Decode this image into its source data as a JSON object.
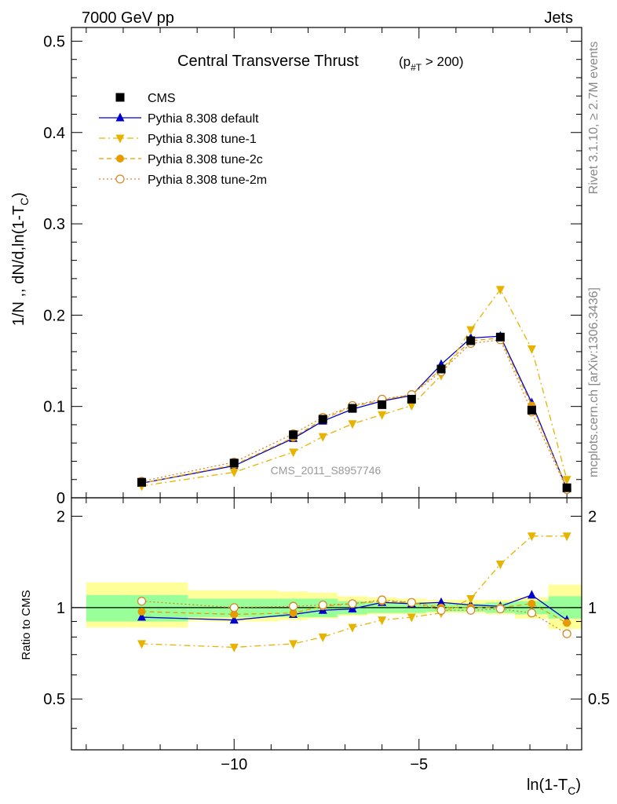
{
  "header": {
    "left": "7000 GeV pp",
    "right": "Jets"
  },
  "side": {
    "rivet": "Rivet 3.1.10, ≥ 2.7M events",
    "mcplots": "mcplots.cern.ch [arXiv:1306.3436]"
  },
  "chart_data": {
    "type": "line",
    "title": "Central Transverse Thrust",
    "title_sub": "(p_#T > 200)",
    "ylabel": "1/N ,, dN/d,ln(1-T_C)",
    "xlabel": "ln(1-T_C)",
    "ratio_ylabel": "Ratio to CMS",
    "watermark": "CMS_2011_S8957746",
    "xlim": [
      -14.4,
      -0.6
    ],
    "ylim_main": [
      0,
      0.515
    ],
    "ylim_ratio": [
      0.34,
      2.3
    ],
    "log_ratio": true,
    "legend_position": "top-left",
    "main_ticks": [
      {
        "v": 0,
        "label": "0"
      },
      {
        "v": 0.1,
        "label": "0.1"
      },
      {
        "v": 0.2,
        "label": "0.2"
      },
      {
        "v": 0.3,
        "label": "0.3"
      },
      {
        "v": 0.4,
        "label": "0.4"
      },
      {
        "v": 0.5,
        "label": "0.5"
      }
    ],
    "ratio_ticks": [
      {
        "v": 0.5,
        "label": "0.5"
      },
      {
        "v": 1,
        "label": "1"
      },
      {
        "v": 2,
        "label": "2"
      }
    ],
    "x_ticks": [
      {
        "v": -10,
        "label": "−10"
      },
      {
        "v": -5,
        "label": "−5"
      }
    ],
    "x": [
      -12.5,
      -10.0,
      -8.4,
      -7.6,
      -6.8,
      -6.0,
      -5.2,
      -4.4,
      -3.6,
      -2.8,
      -1.95,
      -1.0
    ],
    "series": [
      {
        "name": "CMS",
        "color": "#000000",
        "marker": "square",
        "dash": "none",
        "values": [
          0.017,
          0.038,
          0.069,
          0.086,
          0.098,
          0.102,
          0.108,
          0.141,
          0.172,
          0.176,
          0.096,
          0.011
        ],
        "ratio": [
          1,
          1,
          1,
          1,
          1,
          1,
          1,
          1,
          1,
          1,
          1,
          1
        ]
      },
      {
        "name": "Pythia 8.308 default",
        "color": "#0000cc",
        "marker": "triangle-up",
        "dash": "none",
        "values": [
          0.016,
          0.035,
          0.065,
          0.084,
          0.097,
          0.106,
          0.112,
          0.146,
          0.175,
          0.177,
          0.104,
          0.01
        ],
        "ratio": [
          0.93,
          0.91,
          0.95,
          0.98,
          0.99,
          1.04,
          1.03,
          1.04,
          1.02,
          1.01,
          1.1,
          0.91
        ]
      },
      {
        "name": "Pythia 8.308 tune-1",
        "color": "#e6b400",
        "marker": "triangle-down",
        "dash": "8,4,2,4",
        "values": [
          0.013,
          0.028,
          0.05,
          0.067,
          0.081,
          0.091,
          0.101,
          0.134,
          0.184,
          0.228,
          0.163,
          0.02
        ],
        "ratio": [
          0.76,
          0.74,
          0.76,
          0.8,
          0.86,
          0.91,
          0.93,
          0.96,
          1.07,
          1.39,
          1.72,
          1.72
        ]
      },
      {
        "name": "Pythia 8.308 tune-2c",
        "color": "#e69c00",
        "marker": "circle",
        "dash": "6,4",
        "values": [
          0.016,
          0.036,
          0.066,
          0.086,
          0.1,
          0.107,
          0.113,
          0.141,
          0.172,
          0.175,
          0.101,
          0.01
        ],
        "ratio": [
          0.97,
          0.95,
          0.96,
          1.01,
          1.03,
          1.05,
          1.04,
          1.0,
          1.0,
          1.0,
          1.03,
          0.89
        ]
      },
      {
        "name": "Pythia 8.308 tune-2m",
        "color": "#d4892a",
        "marker": "circle-open",
        "dash": "2,3",
        "values": [
          0.018,
          0.039,
          0.07,
          0.088,
          0.101,
          0.108,
          0.113,
          0.138,
          0.169,
          0.173,
          0.094,
          0.009
        ],
        "ratio": [
          1.05,
          1.0,
          1.01,
          1.02,
          1.03,
          1.06,
          1.04,
          0.98,
          0.98,
          0.99,
          0.96,
          0.82
        ]
      }
    ],
    "bands": [
      {
        "x0": -14.0,
        "x1": -11.25,
        "green": [
          0.9,
          1.1
        ],
        "yellow": [
          0.86,
          1.21
        ]
      },
      {
        "x0": -11.25,
        "x1": -8.8,
        "green": [
          0.93,
          1.07
        ],
        "yellow": [
          0.9,
          1.14
        ]
      },
      {
        "x0": -8.8,
        "x1": -8.0,
        "green": [
          0.93,
          1.07
        ],
        "yellow": [
          0.91,
          1.13
        ]
      },
      {
        "x0": -8.0,
        "x1": -7.2,
        "green": [
          0.93,
          1.07
        ],
        "yellow": [
          0.92,
          1.12
        ]
      },
      {
        "x0": -7.2,
        "x1": -6.4,
        "green": [
          0.95,
          1.05
        ],
        "yellow": [
          0.94,
          1.09
        ]
      },
      {
        "x0": -6.4,
        "x1": -5.6,
        "green": [
          0.96,
          1.04
        ],
        "yellow": [
          0.95,
          1.08
        ]
      },
      {
        "x0": -5.6,
        "x1": -4.8,
        "green": [
          0.96,
          1.04
        ],
        "yellow": [
          0.95,
          1.07
        ]
      },
      {
        "x0": -4.8,
        "x1": -4.0,
        "green": [
          0.97,
          1.03
        ],
        "yellow": [
          0.96,
          1.06
        ]
      },
      {
        "x0": -4.0,
        "x1": -3.2,
        "green": [
          0.97,
          1.03
        ],
        "yellow": [
          0.96,
          1.06
        ]
      },
      {
        "x0": -3.2,
        "x1": -2.4,
        "green": [
          0.96,
          1.04
        ],
        "yellow": [
          0.95,
          1.06
        ]
      },
      {
        "x0": -2.4,
        "x1": -1.5,
        "green": [
          0.95,
          1.05
        ],
        "yellow": [
          0.92,
          1.08
        ]
      },
      {
        "x0": -1.5,
        "x1": -0.6,
        "green": [
          0.92,
          1.09
        ],
        "yellow": [
          0.85,
          1.19
        ]
      }
    ]
  }
}
